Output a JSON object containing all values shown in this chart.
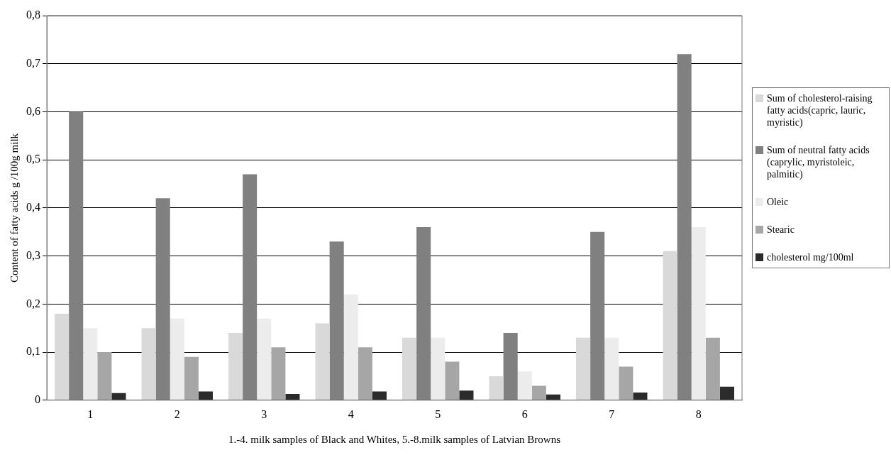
{
  "chart_data": {
    "type": "bar",
    "xlabel": "1.-4. milk samples of Black and Whites, 5.-8.milk samples of Latvian Browns",
    "ylabel": "Content of fatty acids g /100g milk",
    "categories": [
      "1",
      "2",
      "3",
      "4",
      "5",
      "6",
      "7",
      "8"
    ],
    "series": [
      {
        "name": "Sum of cholesterol-raising fatty acids(capric, lauric, myristic)",
        "color": "#d9d9d9",
        "values": [
          0.18,
          0.15,
          0.14,
          0.16,
          0.13,
          0.05,
          0.13,
          0.31
        ]
      },
      {
        "name": "Sum of neutral fatty acids (caprylic, myristoleic, palmitic)",
        "color": "#808080",
        "values": [
          0.6,
          0.42,
          0.47,
          0.33,
          0.36,
          0.14,
          0.35,
          0.72
        ]
      },
      {
        "name": "Oleic",
        "color": "#ececec",
        "values": [
          0.15,
          0.17,
          0.17,
          0.22,
          0.13,
          0.06,
          0.13,
          0.36
        ]
      },
      {
        "name": "Stearic",
        "color": "#a6a6a6",
        "values": [
          0.1,
          0.09,
          0.11,
          0.11,
          0.08,
          0.03,
          0.07,
          0.13
        ]
      },
      {
        "name": "cholesterol mg/100ml",
        "color": "#2b2b2b",
        "values": [
          0.015,
          0.018,
          0.013,
          0.018,
          0.02,
          0.012,
          0.016,
          0.028
        ]
      }
    ],
    "ylim": [
      0,
      0.8
    ],
    "yticks": [
      0,
      {
        "value": 0.1,
        "label": "0,1"
      },
      {
        "value": 0.2,
        "label": "0,2"
      },
      {
        "value": 0.3,
        "label": "0,3"
      },
      {
        "value": 0.4,
        "label": "0,4"
      },
      {
        "value": 0.5,
        "label": "0,5"
      },
      {
        "value": 0.6,
        "label": "0,6"
      },
      {
        "value": 0.7,
        "label": "0,7"
      },
      {
        "value": 0.8,
        "label": "0,8"
      }
    ],
    "grid": "y",
    "legend": "right"
  }
}
